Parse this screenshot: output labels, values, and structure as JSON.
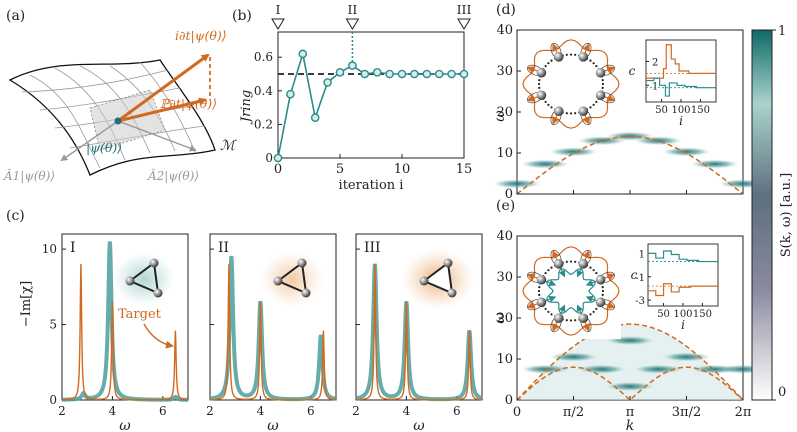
{
  "colors": {
    "teal": "#2a8c8c",
    "orange": "#d2691e",
    "dark": "#222222",
    "grey": "#9a9a9a"
  },
  "panel_a": {
    "label": "(a)",
    "eq_top": "i∂t|ψ(θ)⟩",
    "eq_proj": "ℙ∂t|ψ(θ)⟩",
    "eq_state": "|ψ(θ)⟩",
    "eq_A1": "Â1|ψ(θ)⟩",
    "eq_A2": "Â2|ψ(θ)⟩",
    "manifold": "ℳ"
  },
  "panel_b": {
    "label": "(b)",
    "markers": [
      "I",
      "II",
      "III"
    ],
    "ylabel": "Jring",
    "xlabel": "iteration i",
    "xticks": [
      "0",
      "5",
      "10",
      "15"
    ],
    "yticks": [
      "0",
      "0.2",
      "0.4",
      "0.6"
    ]
  },
  "panel_c": {
    "label": "(c)",
    "ylabel": "−Im[χ]",
    "xlabel": "ω",
    "yticks": [
      "0",
      "5",
      "10"
    ],
    "xticks": [
      "2",
      "4",
      "6"
    ],
    "subpanels": [
      "I",
      "II",
      "III"
    ],
    "target_label": "Target"
  },
  "panel_d": {
    "label": "(d)",
    "ylabel": "ω",
    "yticks": [
      "0",
      "10",
      "20",
      "30",
      "40"
    ],
    "inset_ylabel": "c",
    "inset_xlabel": "i",
    "inset_xticks": [
      "50",
      "100",
      "150"
    ],
    "inset_yticks": [
      "1",
      "2"
    ]
  },
  "panel_e": {
    "label": "(e)",
    "ylabel": "ω",
    "yticks": [
      "0",
      "10",
      "20",
      "30",
      "40"
    ],
    "xticks": [
      "0",
      "π/2",
      "π",
      "3π/2",
      "2π"
    ],
    "xlabel": "k",
    "inset_ylabel": "c",
    "inset_xlabel": "i",
    "inset_xticks": [
      "50",
      "100",
      "150"
    ],
    "inset_yticks": [
      "1",
      "-1",
      "-3"
    ]
  },
  "colorbar": {
    "label": "S(k, ω) [a.u.]",
    "max": "1",
    "min": "0"
  },
  "chart_data": [
    {
      "type": "line",
      "title": "(b)",
      "xlabel": "iteration i",
      "ylabel": "J_ring",
      "x": [
        0,
        1,
        2,
        3,
        4,
        5,
        6,
        7,
        8,
        9,
        10,
        11,
        12,
        13,
        14,
        15
      ],
      "series": [
        {
          "name": "J_ring",
          "values": [
            0.0,
            0.38,
            0.62,
            0.24,
            0.45,
            0.51,
            0.55,
            0.5,
            0.51,
            0.5,
            0.5,
            0.5,
            0.5,
            0.5,
            0.5,
            0.5
          ]
        }
      ],
      "target": 0.5,
      "xlim": [
        0,
        15
      ],
      "ylim": [
        0,
        0.75
      ]
    },
    {
      "type": "line",
      "title": "(c)",
      "xlabel": "ω",
      "ylabel": "−Im[χ]",
      "xlim": [
        2,
        7
      ],
      "ylim": [
        0,
        11
      ],
      "panels": [
        {
          "name": "I",
          "teal_peaks": [
            [
              2.85,
              0.4
            ],
            [
              3.9,
              10.5
            ],
            [
              6.5,
              0.2
            ]
          ],
          "orange_peaks": [
            [
              2.75,
              9.0
            ],
            [
              4.0,
              6.5
            ],
            [
              6.5,
              4.6
            ]
          ]
        },
        {
          "name": "II",
          "teal_peaks": [
            [
              2.85,
              9.5
            ],
            [
              4.0,
              6.5
            ],
            [
              6.4,
              4.3
            ]
          ],
          "orange_peaks": [
            [
              2.75,
              9.0
            ],
            [
              4.0,
              6.5
            ],
            [
              6.5,
              4.6
            ]
          ]
        },
        {
          "name": "III",
          "teal_peaks": [
            [
              2.75,
              9.0
            ],
            [
              4.0,
              6.5
            ],
            [
              6.5,
              4.6
            ]
          ],
          "orange_peaks": [
            [
              2.75,
              9.0
            ],
            [
              4.0,
              6.5
            ],
            [
              6.5,
              4.6
            ]
          ]
        }
      ]
    },
    {
      "type": "heatmap",
      "title": "(d)",
      "xlabel": "k",
      "ylabel": "ω",
      "xlim": [
        0,
        6.283
      ],
      "ylim": [
        0,
        40
      ],
      "dashed_curve": "ω = 14 sin(k/2)",
      "blobs": [
        [
          0.0,
          2.5
        ],
        [
          0.785,
          7.3
        ],
        [
          1.571,
          10.3
        ],
        [
          2.356,
          13.0
        ],
        [
          3.142,
          14.1
        ],
        [
          3.927,
          13.0
        ],
        [
          4.712,
          10.3
        ],
        [
          5.498,
          7.3
        ],
        [
          6.283,
          2.5
        ]
      ]
    },
    {
      "type": "heatmap",
      "title": "(e)",
      "xlabel": "k",
      "ylabel": "ω",
      "xlim": [
        0,
        6.283
      ],
      "ylim": [
        0,
        40
      ],
      "dashed_curves": [
        "ω = 18.5 sin(k/2)",
        "ω = 8 sin(k)"
      ],
      "blobs": [
        [
          0.785,
          7.5
        ],
        [
          1.571,
          10.5
        ],
        [
          2.356,
          7.5
        ],
        [
          3.142,
          14.5
        ],
        [
          3.142,
          3.3
        ],
        [
          3.927,
          7.5
        ],
        [
          4.712,
          10.5
        ],
        [
          5.498,
          7.5
        ],
        [
          6.283,
          7.5
        ]
      ]
    }
  ]
}
